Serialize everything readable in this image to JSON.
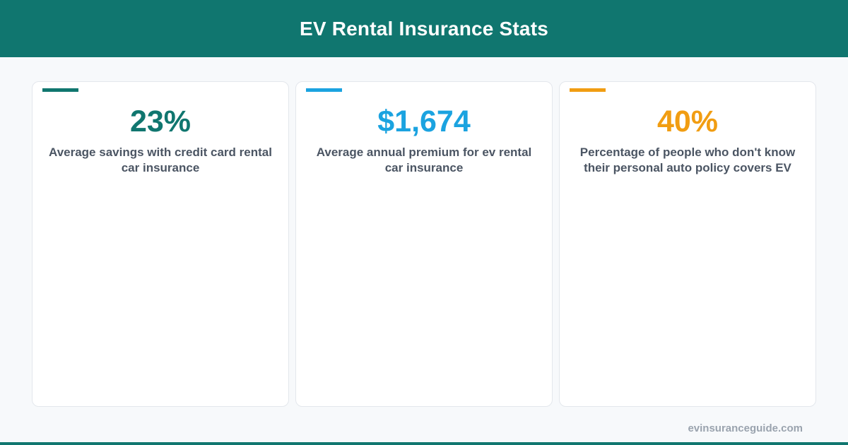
{
  "header": {
    "title": "EV Rental Insurance Stats"
  },
  "colors": {
    "brand": "#10766f",
    "card1_accent": "#10766f",
    "card2_accent": "#1ba3e0",
    "card3_accent": "#f19d12"
  },
  "stats": [
    {
      "value": "23%",
      "label": "Average savings with credit card rental car insurance"
    },
    {
      "value": "$1,674",
      "label": "Average annual premium for ev rental car insurance"
    },
    {
      "value": "40%",
      "label": "Percentage of people who don't know their personal auto policy covers EV"
    }
  ],
  "footer": {
    "site": "evinsuranceguide.com"
  }
}
